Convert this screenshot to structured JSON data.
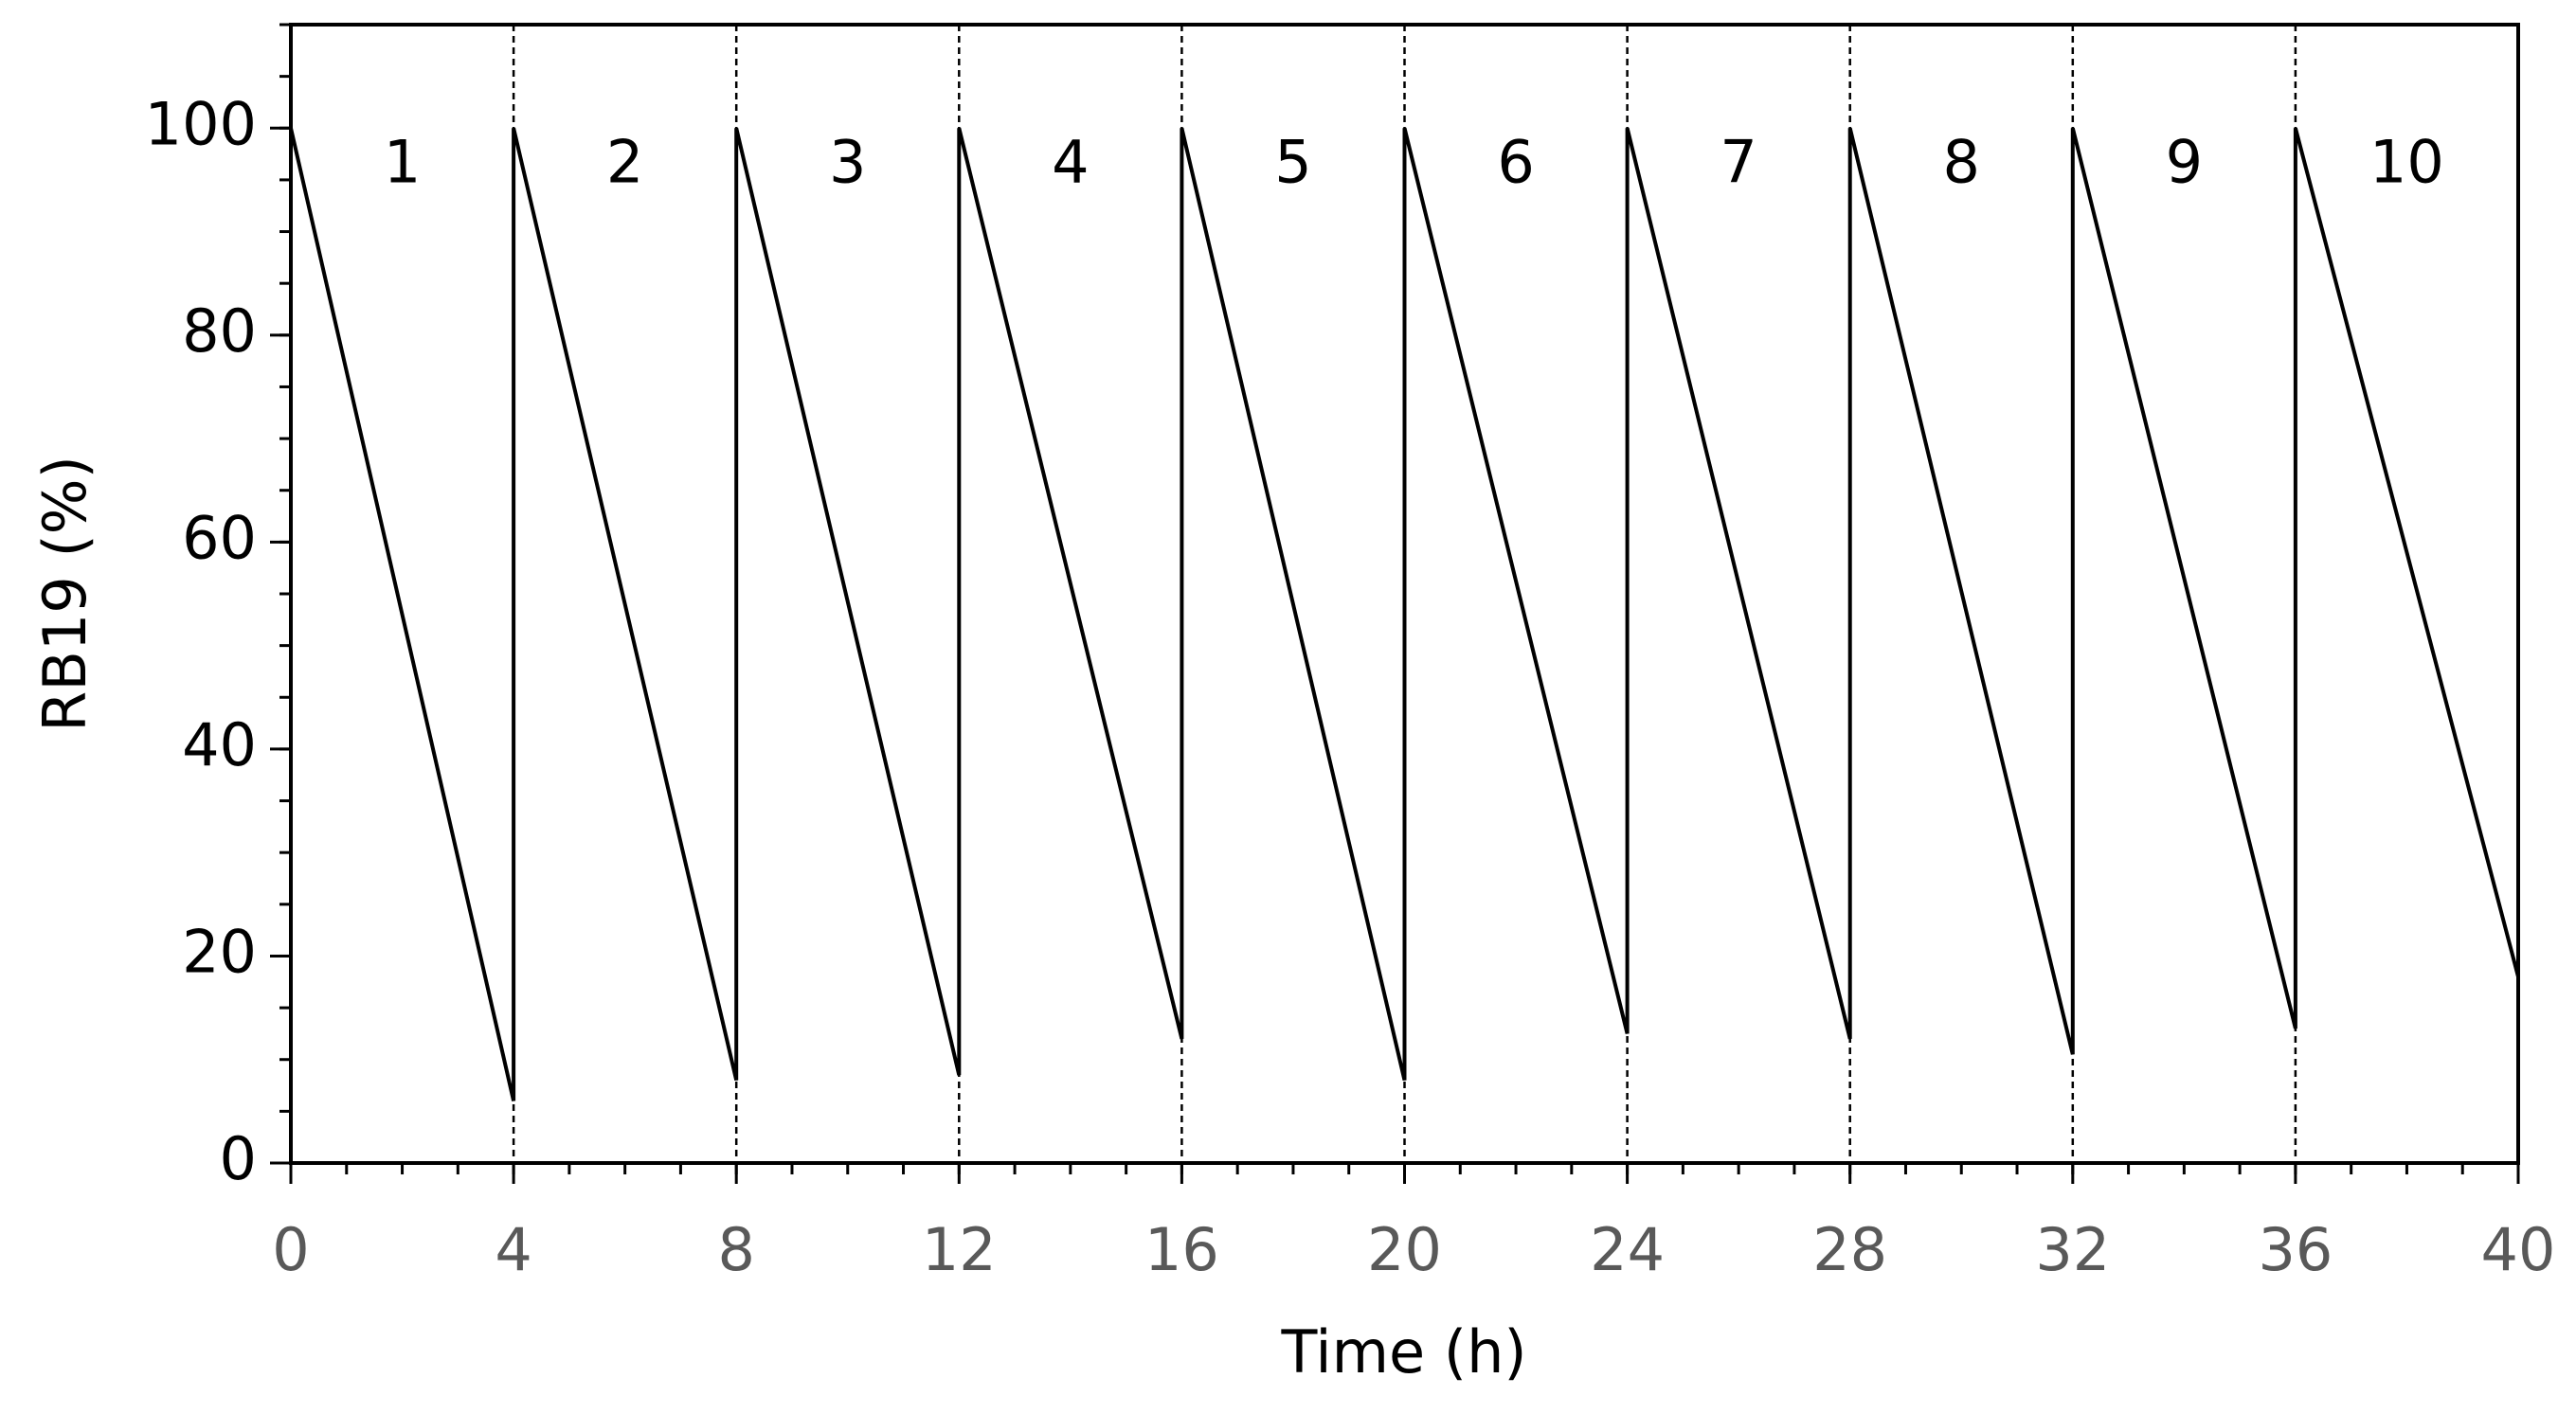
{
  "chart_data": {
    "type": "line",
    "x_label": "Time (h)",
    "y_label": "RB19 (%)",
    "x": [
      0,
      4,
      4,
      8,
      8,
      12,
      12,
      16,
      16,
      20,
      20,
      24,
      24,
      28,
      28,
      32,
      32,
      36,
      36,
      40
    ],
    "values": [
      100,
      6,
      100,
      8,
      100,
      8.5,
      100,
      12,
      100,
      8,
      100,
      12.5,
      100,
      12,
      100,
      10.5,
      100,
      13,
      100,
      18
    ],
    "color": "#000000",
    "annotations": [
      "1",
      "2",
      "3",
      "4",
      "5",
      "6",
      "7",
      "8",
      "9",
      "10"
    ],
    "xlim": [
      0,
      40
    ],
    "xticks": [
      0,
      4,
      8,
      12,
      16,
      20,
      24,
      28,
      32,
      36,
      40
    ],
    "ylim": [
      0,
      110
    ],
    "yticks": [
      0,
      20,
      40,
      60,
      80,
      100
    ]
  }
}
